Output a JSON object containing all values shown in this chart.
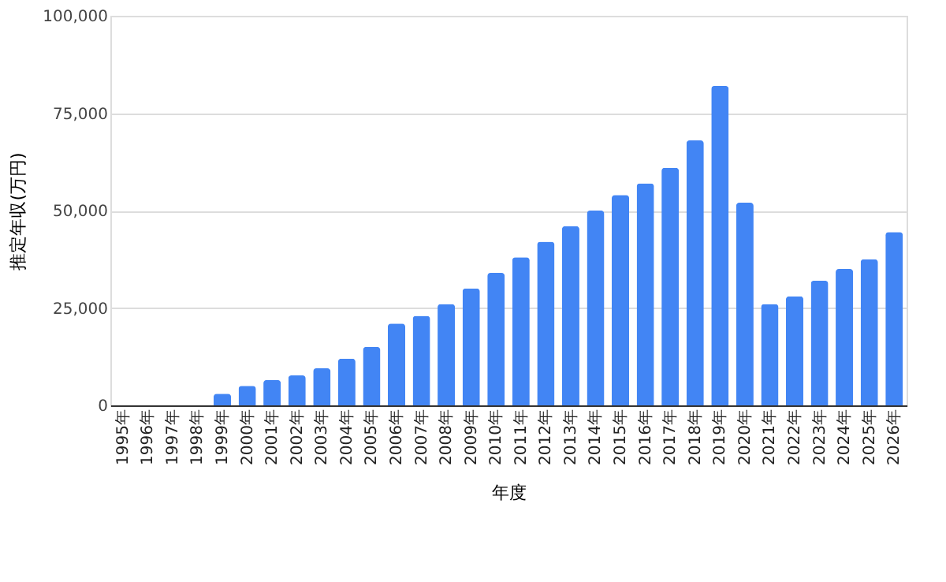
{
  "chart_data": {
    "type": "bar",
    "xlabel": "年度",
    "ylabel": "推定年収(万円)",
    "categories": [
      "1995年",
      "1996年",
      "1997年",
      "1998年",
      "1999年",
      "2000年",
      "2001年",
      "2002年",
      "2003年",
      "2004年",
      "2005年",
      "2006年",
      "2007年",
      "2008年",
      "2009年",
      "2010年",
      "2011年",
      "2012年",
      "2013年",
      "2014年",
      "2015年",
      "2016年",
      "2017年",
      "2018年",
      "2019年",
      "2020年",
      "2021年",
      "2022年",
      "2023年",
      "2024年",
      "2025年",
      "2026年"
    ],
    "values": [
      0,
      0,
      0,
      0,
      3000,
      5000,
      6500,
      7700,
      9500,
      12000,
      15000,
      21000,
      23000,
      26000,
      30000,
      34000,
      38000,
      42000,
      46000,
      50000,
      54000,
      57000,
      61000,
      68000,
      82000,
      52000,
      26000,
      28000,
      32000,
      35000,
      37500,
      44500
    ],
    "color": "#4285f4",
    "ylim": [
      0,
      100000
    ],
    "yticks": [
      {
        "value": 0,
        "label": "0"
      },
      {
        "value": 25000,
        "label": "25,000"
      },
      {
        "value": 50000,
        "label": "50,000"
      },
      {
        "value": 75000,
        "label": "75,000"
      },
      {
        "value": 100000,
        "label": "100,000"
      }
    ],
    "grid": "y"
  }
}
